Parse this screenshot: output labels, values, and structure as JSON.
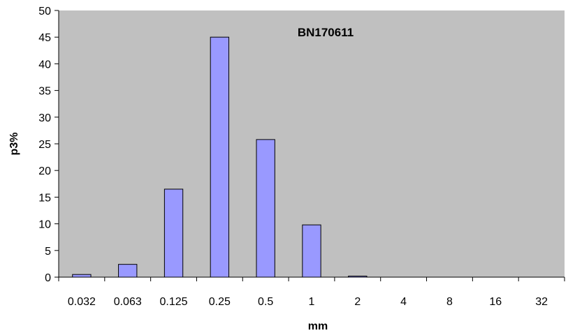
{
  "chart_data": {
    "type": "bar",
    "title": "BN170611",
    "xlabel": "mm",
    "ylabel": "p3%",
    "categories": [
      "0.032",
      "0.063",
      "0.125",
      "0.25",
      "0.5",
      "1",
      "2",
      "4",
      "8",
      "16",
      "32"
    ],
    "series": [
      {
        "values": [
          0.5,
          2.4,
          16.5,
          45.0,
          25.8,
          9.8,
          0.2,
          0,
          0,
          0,
          0
        ]
      }
    ],
    "ylim": [
      0,
      50
    ],
    "yticks": [
      0,
      5,
      10,
      15,
      20,
      25,
      30,
      35,
      40,
      45,
      50
    ],
    "grid": false,
    "legend": "none",
    "colors": {
      "plot_background": "#c0c0c0",
      "bar_fill": "#9999ff",
      "bar_stroke": "#000000"
    }
  }
}
